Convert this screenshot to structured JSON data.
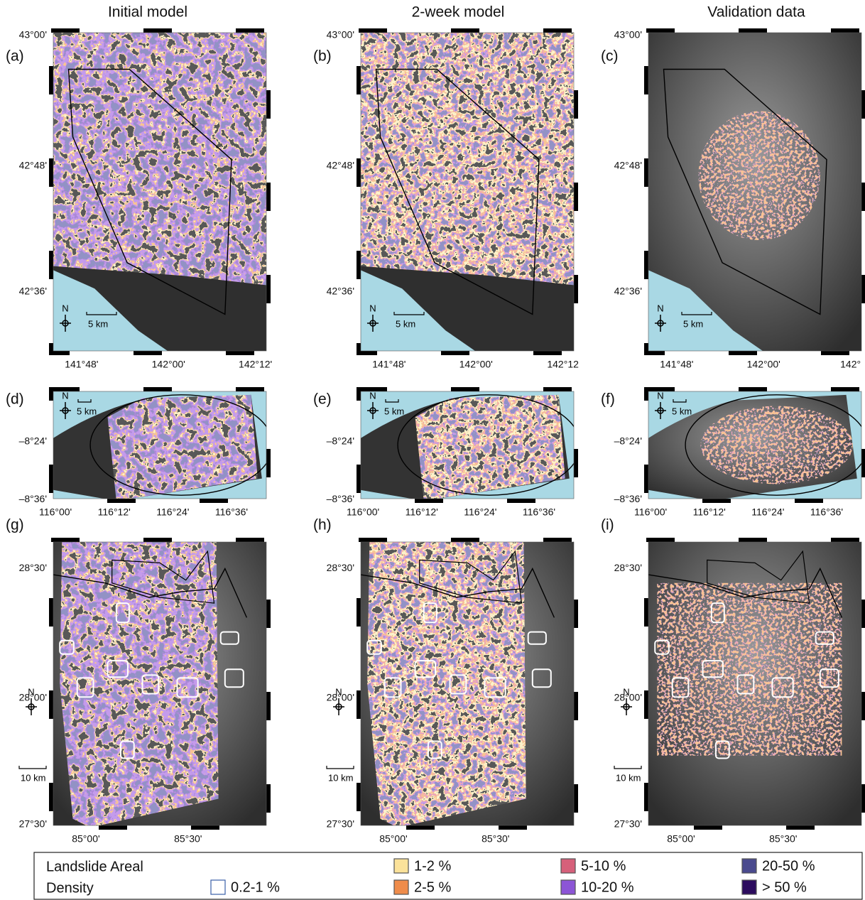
{
  "column_titles": [
    "Initial model",
    "2-week model",
    "Validation data"
  ],
  "north_label": "N",
  "rows": [
    {
      "yticks": [
        "43°00'",
        "42°48'",
        "42°36'"
      ],
      "scale": "5 km"
    },
    {
      "yticks": [
        "–8°24'",
        "–8°36'"
      ],
      "scale": "5 km"
    },
    {
      "yticks": [
        "28°30'",
        "28°00'",
        "27°30'"
      ],
      "scale": "10 km"
    }
  ],
  "panels": [
    {
      "label": "(a)",
      "xticks": [
        "141°48'",
        "142°00'",
        "142°12'"
      ]
    },
    {
      "label": "(b)",
      "xticks": [
        "141°48'",
        "142°00'",
        "142°12"
      ]
    },
    {
      "label": "(c)",
      "xticks": [
        "141°48'",
        "142°00'",
        "142°"
      ]
    },
    {
      "label": "(d)",
      "xticks": [
        "116°00'",
        "116°12'",
        "116°24'",
        "116°36'"
      ]
    },
    {
      "label": "(e)",
      "xticks": [
        "116°00'",
        "116°12'",
        "116°24'",
        "116°36'"
      ]
    },
    {
      "label": "(f)",
      "xticks": [
        "116°00'",
        "116°12'",
        "116°24'",
        "116°36'"
      ]
    },
    {
      "label": "(g)",
      "xticks": [
        "85°00'",
        "85°30'"
      ]
    },
    {
      "label": "(h)",
      "xticks": [
        "85°00'",
        "85°30'"
      ]
    },
    {
      "label": "(i)",
      "xticks": [
        "85°00'",
        "85°30'"
      ]
    }
  ],
  "legend": {
    "title": [
      "Landslide Areal",
      "Density"
    ],
    "items": [
      {
        "label": "0.2-1 %",
        "color": "#ffffff"
      },
      {
        "label": "1-2 %",
        "color": "#fbe29a"
      },
      {
        "label": "2-5 %",
        "color": "#ef8c4b"
      },
      {
        "label": "5-10 %",
        "color": "#d6607a"
      },
      {
        "label": "10-20 %",
        "color": "#8c55d6"
      },
      {
        "label": "20-50 %",
        "color": "#4a4a8e"
      },
      {
        "label": "> 50 %",
        "color": "#2c0c5e"
      }
    ]
  }
}
